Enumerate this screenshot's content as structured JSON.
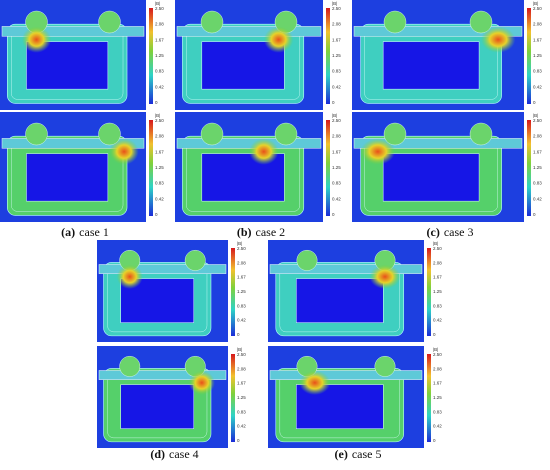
{
  "panels": [
    {
      "label": "(a)",
      "caption": "case 1",
      "maps": [
        {
          "scale_title": "|B|",
          "scale_labels": [
            "2.50",
            "2.08",
            "1.67",
            "1.25",
            "0.83",
            "0.42",
            "0"
          ]
        },
        {
          "scale_title": "|B|",
          "scale_labels": [
            "2.50",
            "2.08",
            "1.67",
            "1.25",
            "0.83",
            "0.42",
            "0"
          ]
        }
      ]
    },
    {
      "label": "(b)",
      "caption": "case 2",
      "maps": [
        {
          "scale_title": "|B|",
          "scale_labels": [
            "2.50",
            "2.08",
            "1.67",
            "1.25",
            "0.83",
            "0.42",
            "0"
          ]
        },
        {
          "scale_title": "|B|",
          "scale_labels": [
            "2.50",
            "2.08",
            "1.67",
            "1.25",
            "0.83",
            "0.42",
            "0"
          ]
        }
      ]
    },
    {
      "label": "(c)",
      "caption": "case 3",
      "maps": [
        {
          "scale_title": "|B|",
          "scale_labels": [
            "2.50",
            "2.08",
            "1.67",
            "1.25",
            "0.83",
            "0.42",
            "0"
          ]
        },
        {
          "scale_title": "|B|",
          "scale_labels": [
            "2.50",
            "2.08",
            "1.67",
            "1.25",
            "0.83",
            "0.42",
            "0"
          ]
        }
      ]
    },
    {
      "label": "(d)",
      "caption": "case 4",
      "maps": [
        {
          "scale_title": "|B|",
          "scale_labels": [
            "2.50",
            "2.08",
            "1.67",
            "1.25",
            "0.83",
            "0.42",
            "0"
          ]
        },
        {
          "scale_title": "|B|",
          "scale_labels": [
            "2.50",
            "2.08",
            "1.67",
            "1.25",
            "0.83",
            "0.42",
            "0"
          ]
        }
      ]
    },
    {
      "label": "(e)",
      "caption": "case 5",
      "maps": [
        {
          "scale_title": "|B|",
          "scale_labels": [
            "2.50",
            "2.08",
            "1.67",
            "1.25",
            "0.83",
            "0.42",
            "0"
          ]
        },
        {
          "scale_title": "|B|",
          "scale_labels": [
            "2.50",
            "2.08",
            "1.67",
            "1.25",
            "0.83",
            "0.42",
            "0"
          ]
        }
      ]
    }
  ]
}
